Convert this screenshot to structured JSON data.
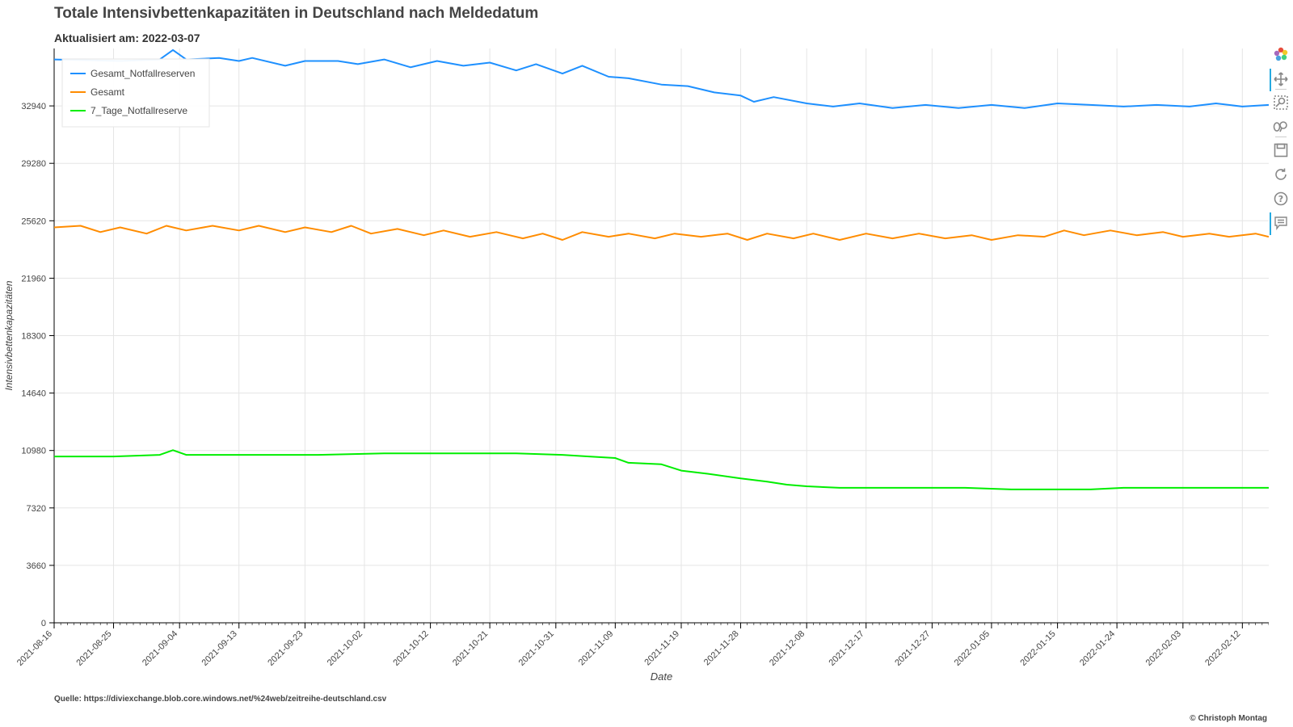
{
  "title": "Totale Intensivbettenkapazitäten in Deutschland nach Meldedatum",
  "subtitle": "Aktualisiert am: 2022-03-07",
  "source": "Quelle: https://diviexchange.blob.core.windows.net/%24web/zeitreihe-deutschland.csv",
  "copyright": "© Christoph Montag",
  "toolbar": {
    "tools": [
      {
        "name": "bokeh-logo-icon",
        "active": false
      },
      {
        "name": "pan-tool-icon",
        "active": true
      },
      {
        "name": "box-zoom-tool-icon",
        "active": false
      },
      {
        "name": "wheel-zoom-tool-icon",
        "active": false
      },
      {
        "name": "save-tool-icon",
        "active": false
      },
      {
        "name": "reset-tool-icon",
        "active": false
      },
      {
        "name": "help-tool-icon",
        "active": false
      },
      {
        "name": "hover-tool-icon",
        "active": true
      }
    ]
  },
  "chart_data": {
    "type": "line",
    "xlabel": "Date",
    "ylabel": "Intensivbettenkapazitäten",
    "x_start": "2021-08-16",
    "x_end": "2022-02-16",
    "ylim": [
      0,
      36600
    ],
    "yticks": [
      0,
      3660,
      7320,
      10980,
      14640,
      18300,
      21960,
      25620,
      29280,
      32940
    ],
    "xticks": [
      "2021-08-16",
      "2021-08-25",
      "2021-09-04",
      "2021-09-13",
      "2021-09-23",
      "2021-10-02",
      "2021-10-12",
      "2021-10-21",
      "2021-10-31",
      "2021-11-09",
      "2021-11-19",
      "2021-11-28",
      "2021-12-08",
      "2021-12-17",
      "2021-12-27",
      "2022-01-05",
      "2022-01-15",
      "2022-01-24",
      "2022-02-03",
      "2022-02-12"
    ],
    "grid": true,
    "legend_position": "top-left",
    "series": [
      {
        "name": "Gesamt_Notfallreserven",
        "color": "#1e90ff",
        "points": [
          [
            "2021-08-16",
            35900
          ],
          [
            "2021-08-26",
            35800
          ],
          [
            "2021-09-01",
            35900
          ],
          [
            "2021-09-03",
            36500
          ],
          [
            "2021-09-05",
            35900
          ],
          [
            "2021-09-10",
            36000
          ],
          [
            "2021-09-13",
            35800
          ],
          [
            "2021-09-15",
            36000
          ],
          [
            "2021-09-20",
            35500
          ],
          [
            "2021-09-23",
            35800
          ],
          [
            "2021-09-28",
            35800
          ],
          [
            "2021-10-01",
            35600
          ],
          [
            "2021-10-05",
            35900
          ],
          [
            "2021-10-09",
            35400
          ],
          [
            "2021-10-13",
            35800
          ],
          [
            "2021-10-17",
            35500
          ],
          [
            "2021-10-21",
            35700
          ],
          [
            "2021-10-25",
            35200
          ],
          [
            "2021-10-28",
            35600
          ],
          [
            "2021-11-01",
            35000
          ],
          [
            "2021-11-04",
            35500
          ],
          [
            "2021-11-08",
            34800
          ],
          [
            "2021-11-11",
            34700
          ],
          [
            "2021-11-16",
            34300
          ],
          [
            "2021-11-20",
            34200
          ],
          [
            "2021-11-24",
            33800
          ],
          [
            "2021-11-28",
            33600
          ],
          [
            "2021-11-30",
            33200
          ],
          [
            "2021-12-03",
            33500
          ],
          [
            "2021-12-08",
            33100
          ],
          [
            "2021-12-12",
            32900
          ],
          [
            "2021-12-16",
            33100
          ],
          [
            "2021-12-21",
            32800
          ],
          [
            "2021-12-26",
            33000
          ],
          [
            "2021-12-31",
            32800
          ],
          [
            "2022-01-05",
            33000
          ],
          [
            "2022-01-10",
            32800
          ],
          [
            "2022-01-15",
            33100
          ],
          [
            "2022-01-20",
            33000
          ],
          [
            "2022-01-25",
            32900
          ],
          [
            "2022-01-30",
            33000
          ],
          [
            "2022-02-04",
            32900
          ],
          [
            "2022-02-08",
            33100
          ],
          [
            "2022-02-12",
            32900
          ],
          [
            "2022-02-16",
            33000
          ]
        ]
      },
      {
        "name": "Gesamt",
        "color": "#ff8c00",
        "points": [
          [
            "2021-08-16",
            25200
          ],
          [
            "2021-08-20",
            25300
          ],
          [
            "2021-08-23",
            24900
          ],
          [
            "2021-08-26",
            25200
          ],
          [
            "2021-08-30",
            24800
          ],
          [
            "2021-09-02",
            25300
          ],
          [
            "2021-09-05",
            25000
          ],
          [
            "2021-09-09",
            25300
          ],
          [
            "2021-09-13",
            25000
          ],
          [
            "2021-09-16",
            25300
          ],
          [
            "2021-09-20",
            24900
          ],
          [
            "2021-09-23",
            25200
          ],
          [
            "2021-09-27",
            24900
          ],
          [
            "2021-09-30",
            25300
          ],
          [
            "2021-10-03",
            24800
          ],
          [
            "2021-10-07",
            25100
          ],
          [
            "2021-10-11",
            24700
          ],
          [
            "2021-10-14",
            25000
          ],
          [
            "2021-10-18",
            24600
          ],
          [
            "2021-10-22",
            24900
          ],
          [
            "2021-10-26",
            24500
          ],
          [
            "2021-10-29",
            24800
          ],
          [
            "2021-11-01",
            24400
          ],
          [
            "2021-11-04",
            24900
          ],
          [
            "2021-11-08",
            24600
          ],
          [
            "2021-11-11",
            24800
          ],
          [
            "2021-11-15",
            24500
          ],
          [
            "2021-11-18",
            24800
          ],
          [
            "2021-11-22",
            24600
          ],
          [
            "2021-11-26",
            24800
          ],
          [
            "2021-11-29",
            24400
          ],
          [
            "2021-12-02",
            24800
          ],
          [
            "2021-12-06",
            24500
          ],
          [
            "2021-12-09",
            24800
          ],
          [
            "2021-12-13",
            24400
          ],
          [
            "2021-12-17",
            24800
          ],
          [
            "2021-12-21",
            24500
          ],
          [
            "2021-12-25",
            24800
          ],
          [
            "2021-12-29",
            24500
          ],
          [
            "2022-01-02",
            24700
          ],
          [
            "2022-01-05",
            24400
          ],
          [
            "2022-01-09",
            24700
          ],
          [
            "2022-01-13",
            24600
          ],
          [
            "2022-01-16",
            25000
          ],
          [
            "2022-01-19",
            24700
          ],
          [
            "2022-01-23",
            25000
          ],
          [
            "2022-01-27",
            24700
          ],
          [
            "2022-01-31",
            24900
          ],
          [
            "2022-02-03",
            24600
          ],
          [
            "2022-02-07",
            24800
          ],
          [
            "2022-02-10",
            24600
          ],
          [
            "2022-02-14",
            24800
          ],
          [
            "2022-02-16",
            24600
          ]
        ]
      },
      {
        "name": "7_Tage_Notfallreserve",
        "color": "#00ee00",
        "points": [
          [
            "2021-08-16",
            10600
          ],
          [
            "2021-08-25",
            10600
          ],
          [
            "2021-09-01",
            10700
          ],
          [
            "2021-09-03",
            11000
          ],
          [
            "2021-09-05",
            10700
          ],
          [
            "2021-09-15",
            10700
          ],
          [
            "2021-09-25",
            10700
          ],
          [
            "2021-10-05",
            10800
          ],
          [
            "2021-10-15",
            10800
          ],
          [
            "2021-10-25",
            10800
          ],
          [
            "2021-11-01",
            10700
          ],
          [
            "2021-11-05",
            10600
          ],
          [
            "2021-11-09",
            10500
          ],
          [
            "2021-11-11",
            10200
          ],
          [
            "2021-11-16",
            10100
          ],
          [
            "2021-11-19",
            9700
          ],
          [
            "2021-11-23",
            9500
          ],
          [
            "2021-11-28",
            9200
          ],
          [
            "2021-12-02",
            9000
          ],
          [
            "2021-12-05",
            8800
          ],
          [
            "2021-12-08",
            8700
          ],
          [
            "2021-12-13",
            8600
          ],
          [
            "2021-12-18",
            8600
          ],
          [
            "2021-12-25",
            8600
          ],
          [
            "2022-01-01",
            8600
          ],
          [
            "2022-01-08",
            8500
          ],
          [
            "2022-01-15",
            8500
          ],
          [
            "2022-01-20",
            8500
          ],
          [
            "2022-01-25",
            8600
          ],
          [
            "2022-01-30",
            8600
          ],
          [
            "2022-02-05",
            8600
          ],
          [
            "2022-02-10",
            8600
          ],
          [
            "2022-02-16",
            8600
          ]
        ]
      }
    ]
  }
}
